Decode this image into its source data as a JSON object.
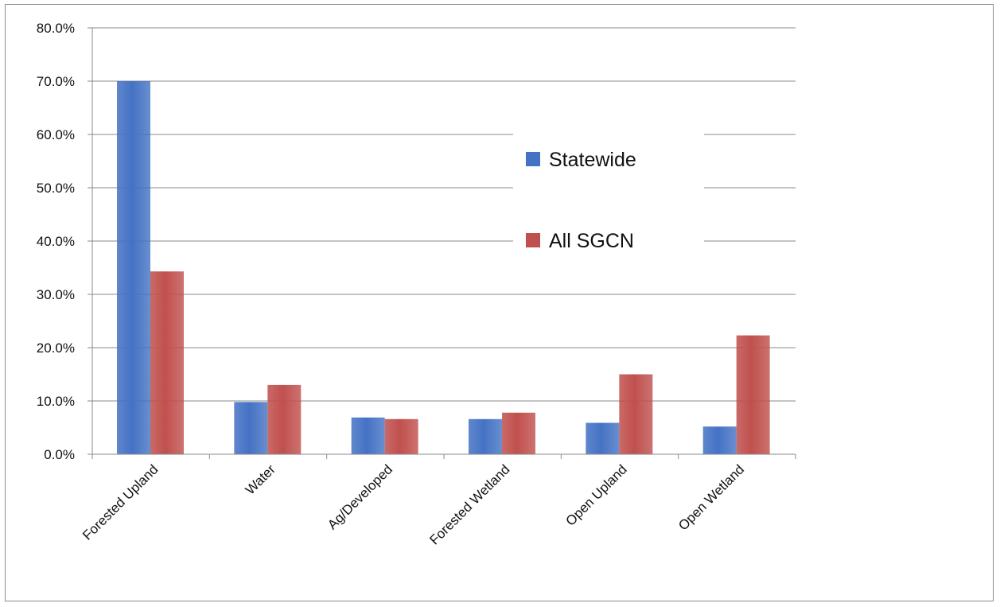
{
  "chart_data": {
    "type": "bar",
    "categories": [
      "Forested Upland",
      "Water",
      "Ag/Developed",
      "Forested Wetland",
      "Open Upland",
      "Open Wetland"
    ],
    "series": [
      {
        "name": "Statewide",
        "color": "#4472C4",
        "values": [
          70.0,
          9.8,
          6.9,
          6.6,
          5.9,
          5.2
        ]
      },
      {
        "name": "All SGCN",
        "color": "#C0504D",
        "values": [
          34.3,
          13.0,
          6.6,
          7.8,
          15.0,
          22.3
        ]
      }
    ],
    "yticks": [
      "0.0%",
      "10.0%",
      "20.0%",
      "30.0%",
      "40.0%",
      "50.0%",
      "60.0%",
      "70.0%",
      "80.0%"
    ],
    "ylim": [
      0,
      80
    ],
    "grid": true,
    "legend_position": "center-right"
  }
}
